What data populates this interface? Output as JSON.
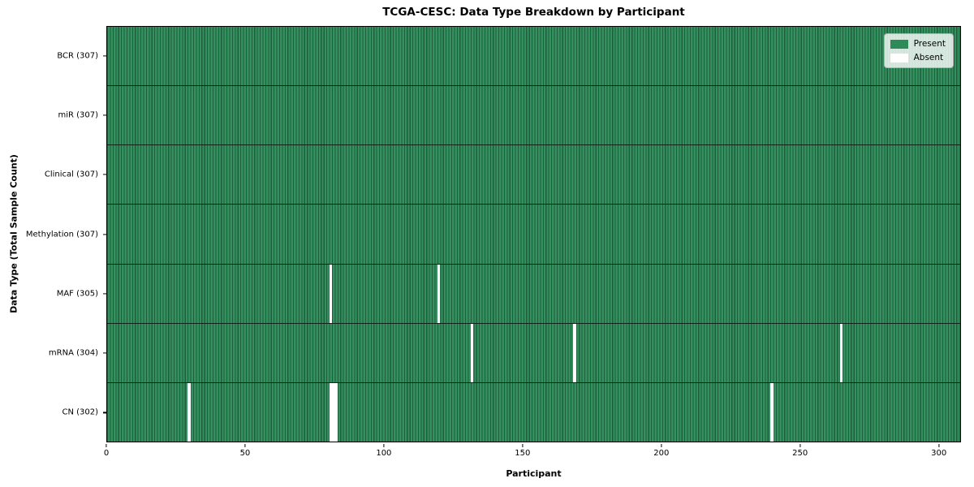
{
  "chart_data": {
    "type": "heatmap",
    "title": "TCGA-CESC: Data Type Breakdown by Participant",
    "xlabel": "Participant",
    "ylabel": "Data Type (Total Sample Count)",
    "x_ticks": [
      0,
      50,
      100,
      150,
      200,
      250,
      300
    ],
    "x_max": 308,
    "n_participants": 307,
    "grid": false,
    "colors": {
      "present_fill": "#35905f",
      "bar_edge": "#1f5e3c",
      "present_legend": "#2e8b57",
      "absent": "#ffffff",
      "row_divider": "#10231a"
    },
    "legend": {
      "position": "upper right",
      "entries": [
        {
          "label": "Present",
          "color": "#2e8b57"
        },
        {
          "label": "Absent",
          "color": "#ffffff"
        }
      ]
    },
    "rows": [
      {
        "label": "BCR (307)",
        "data_type": "bcr",
        "present_count": 307,
        "absent_participants": []
      },
      {
        "label": "miR (307)",
        "data_type": "mir",
        "present_count": 307,
        "absent_participants": []
      },
      {
        "label": "Clinical (307)",
        "data_type": "clinical",
        "present_count": 307,
        "absent_participants": []
      },
      {
        "label": "Methylation (307)",
        "data_type": "methylation",
        "present_count": 307,
        "absent_participants": []
      },
      {
        "label": "MAF (305)",
        "data_type": "maf",
        "present_count": 305,
        "absent_participants": [
          80,
          119
        ]
      },
      {
        "label": "mRNA (304)",
        "data_type": "mrna",
        "present_count": 304,
        "absent_participants": [
          131,
          168,
          264
        ]
      },
      {
        "label": "CN (302)",
        "data_type": "cn",
        "present_count": 302,
        "absent_participants": [
          29,
          80,
          81,
          82,
          239
        ]
      }
    ]
  }
}
